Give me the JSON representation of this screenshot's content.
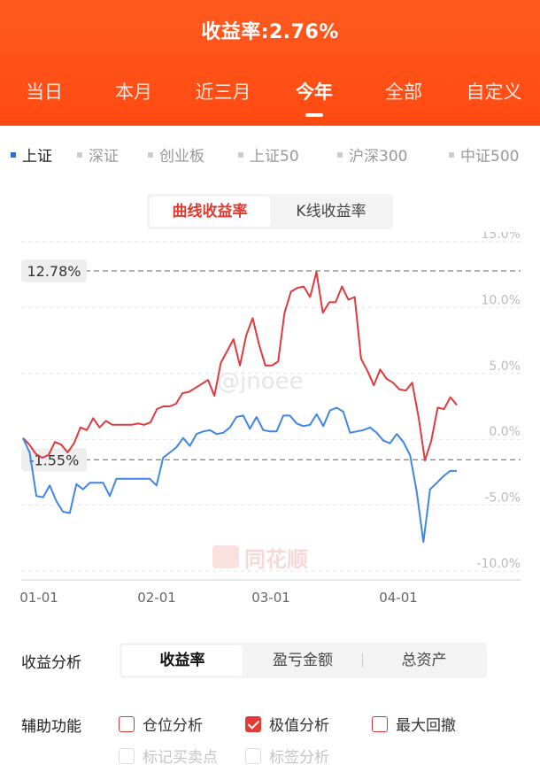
{
  "header": {
    "title": "收益率:2.76%"
  },
  "period_tabs": [
    {
      "label": "当日",
      "active": false
    },
    {
      "label": "本月",
      "active": false
    },
    {
      "label": "近三月",
      "active": false
    },
    {
      "label": "今年",
      "active": true
    },
    {
      "label": "全部",
      "active": false
    },
    {
      "label": "自定义",
      "active": false
    }
  ],
  "index_tabs": [
    {
      "label": "上证",
      "active": true
    },
    {
      "label": "深证",
      "active": false
    },
    {
      "label": "创业板",
      "active": false
    },
    {
      "label": "上证50",
      "active": false
    },
    {
      "label": "沪深300",
      "active": false
    },
    {
      "label": "中证500",
      "active": false
    }
  ],
  "chart_toggle": [
    {
      "label": "曲线收益率",
      "active": true
    },
    {
      "label": "K线收益率",
      "active": false
    }
  ],
  "watermark": {
    "text": "同花顺",
    "mid_text": "@jnoee"
  },
  "colors": {
    "header": "#ff4e17",
    "portfolio": "#e03a3e",
    "index": "#3f86e6"
  },
  "chart_data": {
    "type": "line",
    "x_ticks": [
      "01-01",
      "02-01",
      "03-01",
      "04-01"
    ],
    "y_ticks": [
      "15.0%",
      "10.0%",
      "5.0%",
      "0.0%",
      "-5.0%",
      "-10.0%"
    ],
    "ylim": [
      -10,
      15
    ],
    "max_label": "12.78%",
    "min_label": "-1.55%",
    "max_value": 12.78,
    "min_value": -1.55,
    "grid": true,
    "series": [
      {
        "key": "portfolio",
        "values": [
          0.1,
          -0.4,
          -1.1,
          -1.4,
          -1.2,
          -0.2,
          -0.4,
          -1.0,
          -0.3,
          0.9,
          0.7,
          1.6,
          0.9,
          1.4,
          1.1,
          1.1,
          1.1,
          1.1,
          1.2,
          1.1,
          1.3,
          2.3,
          2.5,
          2.5,
          2.7,
          3.5,
          3.6,
          3.9,
          4.2,
          4.5,
          3.3,
          5.8,
          6.7,
          7.6,
          5.6,
          7.9,
          9.2,
          7.2,
          5.6,
          5.6,
          5.9,
          9.6,
          11.2,
          11.5,
          11.6,
          10.8,
          12.7,
          9.6,
          10.4,
          10.4,
          11.6,
          10.6,
          10.8,
          6.1,
          5.2,
          4.1,
          5.3,
          4.6,
          4.3,
          3.8,
          3.7,
          4.3,
          1.7,
          -1.6,
          -0.1,
          2.4,
          2.3,
          3.2,
          2.6
        ]
      },
      {
        "key": "index",
        "values": [
          0.1,
          -1.0,
          -4.3,
          -4.4,
          -3.5,
          -4.7,
          -5.5,
          -5.6,
          -3.4,
          -3.8,
          -3.3,
          -3.3,
          -3.3,
          -4.3,
          -3.0,
          -3.0,
          -3.0,
          -3.0,
          -3.0,
          -3.0,
          -3.5,
          -1.4,
          -1.0,
          -0.6,
          0.1,
          -0.5,
          0.4,
          0.6,
          0.7,
          0.4,
          0.5,
          0.9,
          1.7,
          1.8,
          0.8,
          1.7,
          0.7,
          0.6,
          0.6,
          1.8,
          1.8,
          1.2,
          1.0,
          1.1,
          1.9,
          1.0,
          2.2,
          2.4,
          2.1,
          0.5,
          0.6,
          0.7,
          0.9,
          0.5,
          -0.1,
          -0.3,
          0.4,
          -0.2,
          -1.2,
          -4.0,
          -7.8,
          -3.8,
          -3.3,
          -2.8,
          -2.4,
          -2.4
        ]
      }
    ]
  },
  "analysis": {
    "label": "收益分析",
    "options": [
      {
        "label": "收益率",
        "active": true
      },
      {
        "label": "盈亏金额",
        "active": false
      },
      {
        "label": "总资产",
        "active": false
      }
    ]
  },
  "aux": {
    "label": "辅助功能",
    "options": [
      {
        "label": "仓位分析",
        "checked": false,
        "disabled": false
      },
      {
        "label": "极值分析",
        "checked": true,
        "disabled": false
      },
      {
        "label": "最大回撤",
        "checked": false,
        "disabled": false
      },
      {
        "label": "标记买卖点",
        "checked": false,
        "disabled": true
      },
      {
        "label": "标签分析",
        "checked": false,
        "disabled": true
      }
    ]
  }
}
